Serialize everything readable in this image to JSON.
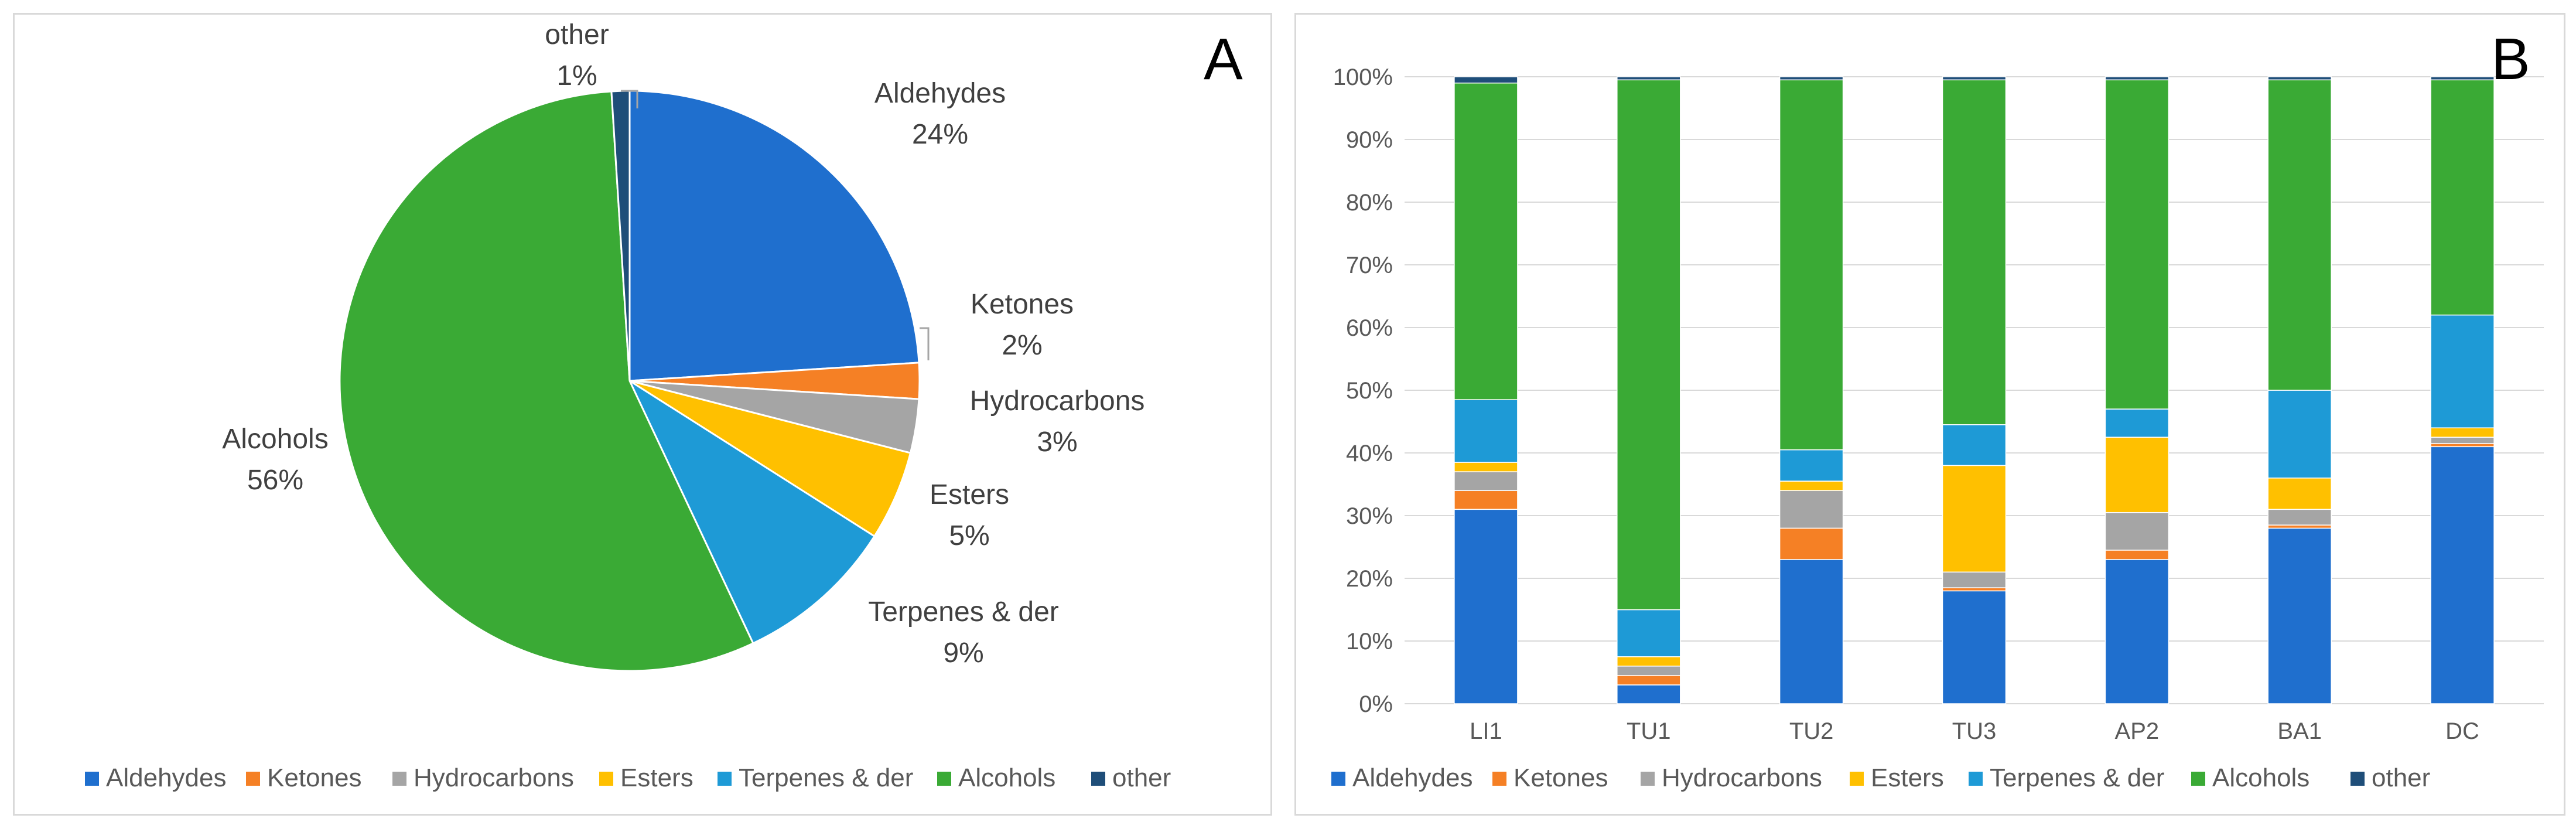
{
  "chart_data": [
    {
      "type": "pie",
      "panel_label": "A",
      "categories": [
        "Aldehydes",
        "Ketones",
        "Hydrocarbons",
        "Esters",
        "Terpenes & der",
        "Alcohols",
        "other"
      ],
      "values": [
        24,
        2,
        3,
        5,
        9,
        56,
        1
      ],
      "value_labels": [
        "24%",
        "2%",
        "3%",
        "5%",
        "9%",
        "56%",
        "1%"
      ],
      "colors": [
        "#1f6fce",
        "#f58025",
        "#a5a5a5",
        "#ffc000",
        "#1e9ad6",
        "#3aaa35",
        "#1f4e79"
      ],
      "legend": [
        "Aldehydes",
        "Ketones",
        "Hydrocarbons",
        "Esters",
        "Terpenes & der",
        "Alcohols",
        "other"
      ]
    },
    {
      "type": "bar",
      "stacked": true,
      "percent_stacked": true,
      "panel_label": "B",
      "categories": [
        "LI1",
        "TU1",
        "TU2",
        "TU3",
        "AP2",
        "BA1",
        "DC"
      ],
      "ylim": [
        0,
        100
      ],
      "yticks": [
        "0%",
        "10%",
        "20%",
        "30%",
        "40%",
        "50%",
        "60%",
        "70%",
        "80%",
        "90%",
        "100%"
      ],
      "series": [
        {
          "name": "Aldehydes",
          "color": "#1f6fce",
          "values": [
            31,
            3,
            23,
            18,
            23,
            28,
            41
          ]
        },
        {
          "name": "Ketones",
          "color": "#f58025",
          "values": [
            3,
            1.5,
            5,
            0.5,
            1.5,
            0.5,
            0.5
          ]
        },
        {
          "name": "Hydrocarbons",
          "color": "#a5a5a5",
          "values": [
            3,
            1.5,
            6,
            2.5,
            6,
            2.5,
            1
          ]
        },
        {
          "name": "Esters",
          "color": "#ffc000",
          "values": [
            1.5,
            1.5,
            1.5,
            17,
            12,
            5,
            1.5
          ]
        },
        {
          "name": "Terpenes & der",
          "color": "#1e9ad6",
          "values": [
            10,
            7.5,
            5,
            6.5,
            4.5,
            14,
            18
          ]
        },
        {
          "name": "Alcohols",
          "color": "#3aaa35",
          "values": [
            50.5,
            84.5,
            59,
            55,
            52.5,
            49.5,
            37.5
          ]
        },
        {
          "name": "other",
          "color": "#1f4e79",
          "values": [
            1,
            0.5,
            0.5,
            0.5,
            0.5,
            0.5,
            0.5
          ]
        }
      ],
      "legend": [
        "Aldehydes",
        "Ketones",
        "Hydrocarbons",
        "Esters",
        "Terpenes & der",
        "Alcohols",
        "other"
      ]
    }
  ]
}
